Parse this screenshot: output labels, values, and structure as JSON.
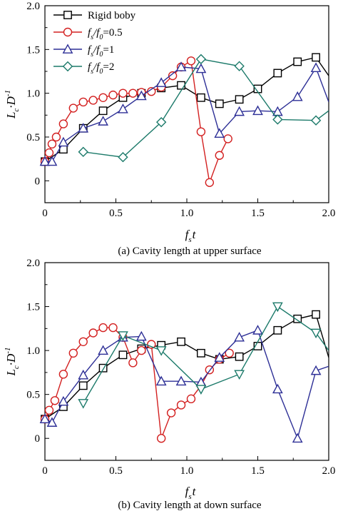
{
  "chart_data": [
    {
      "type": "line",
      "caption": "(a) Cavity length at upper surface",
      "xlabel": "f",
      "xlabel_sub": "s",
      "xlabel_tail": "t",
      "ylabel": "L",
      "ylabel_sub": "c",
      "ylabel_tail": "·D",
      "ylabel_sup": "-1",
      "xlim": [
        0,
        2.0
      ],
      "ylim": [
        -0.25,
        2.0
      ],
      "x_ticks": [
        "0",
        "0.5",
        "1.0",
        "1.5",
        "2.0"
      ],
      "y_ticks": [
        "0",
        "0.5",
        "1.0",
        "1.5",
        "2.0"
      ],
      "legend": {
        "placement": "top-left",
        "entries": [
          {
            "series": "rigid",
            "text": "Rigid boby"
          },
          {
            "series": "r05",
            "parts": [
              "f",
              "s",
              "/",
              "f",
              "0",
              "=0.5"
            ]
          },
          {
            "series": "r1",
            "parts": [
              "f",
              "s",
              "/",
              "f",
              "0",
              "=1"
            ]
          },
          {
            "series": "r2",
            "parts": [
              "f",
              "s",
              "/",
              "f",
              "0",
              "=2"
            ]
          }
        ]
      },
      "series": [
        {
          "id": "rigid",
          "color": "#000000",
          "marker": "square",
          "x": [
            0.0,
            0.13,
            0.27,
            0.41,
            0.55,
            0.68,
            0.82,
            0.96,
            1.1,
            1.23,
            1.37,
            1.5,
            1.64,
            1.78,
            1.91,
            2.0
          ],
          "y": [
            0.22,
            0.36,
            0.6,
            0.8,
            0.95,
            1.0,
            1.06,
            1.09,
            0.95,
            0.88,
            0.93,
            1.05,
            1.23,
            1.36,
            1.41,
            1.2
          ]
        },
        {
          "id": "r05",
          "color": "#d32020",
          "marker": "circle",
          "x": [
            0.0,
            0.03,
            0.05,
            0.08,
            0.13,
            0.2,
            0.27,
            0.34,
            0.41,
            0.48,
            0.55,
            0.62,
            0.68,
            0.75,
            0.82,
            0.9,
            0.96,
            1.03,
            1.1,
            1.16,
            1.23,
            1.29
          ],
          "y": [
            0.22,
            0.32,
            0.42,
            0.5,
            0.65,
            0.83,
            0.9,
            0.92,
            0.95,
            0.98,
            1.0,
            1.0,
            1.01,
            1.02,
            1.07,
            1.2,
            1.3,
            1.37,
            0.56,
            -0.02,
            0.29,
            0.48
          ]
        },
        {
          "id": "r1",
          "color": "#2d2f96",
          "marker": "triangle-up",
          "x": [
            0.0,
            0.05,
            0.13,
            0.27,
            0.41,
            0.55,
            0.68,
            0.82,
            0.96,
            1.1,
            1.23,
            1.37,
            1.5,
            1.64,
            1.78,
            1.91,
            2.0
          ],
          "y": [
            0.22,
            0.22,
            0.44,
            0.6,
            0.68,
            0.82,
            0.97,
            1.12,
            1.3,
            1.28,
            0.54,
            0.79,
            0.8,
            0.79,
            0.96,
            1.29,
            0.9
          ]
        },
        {
          "id": "r2",
          "color": "#1c7a6a",
          "marker": "diamond",
          "x": [
            0.27,
            0.55,
            0.82,
            1.1,
            1.37,
            1.64,
            1.91,
            2.0
          ],
          "y": [
            0.33,
            0.27,
            0.67,
            1.39,
            1.31,
            0.7,
            0.69,
            0.8
          ]
        }
      ]
    },
    {
      "type": "line",
      "caption": "(b) Cavity length at down surface",
      "xlabel": "f",
      "xlabel_sub": "s",
      "xlabel_tail": "t",
      "ylabel": "L",
      "ylabel_sub": "c",
      "ylabel_tail": "·D",
      "ylabel_sup": "-1",
      "xlim": [
        0,
        2.0
      ],
      "ylim": [
        -0.25,
        2.0
      ],
      "x_ticks": [
        "0",
        "0.5",
        "1.0",
        "1.5",
        "2.0"
      ],
      "y_ticks": [
        "0",
        "0.5",
        "1.0",
        "1.5",
        "2.0"
      ],
      "series": [
        {
          "id": "rigid",
          "color": "#000000",
          "marker": "square",
          "x": [
            0.0,
            0.13,
            0.27,
            0.41,
            0.55,
            0.68,
            0.82,
            0.96,
            1.1,
            1.23,
            1.37,
            1.5,
            1.64,
            1.78,
            1.91,
            2.0
          ],
          "y": [
            0.22,
            0.36,
            0.6,
            0.8,
            0.95,
            1.02,
            1.06,
            1.1,
            0.97,
            0.9,
            0.93,
            1.05,
            1.23,
            1.36,
            1.41,
            0.92
          ]
        },
        {
          "id": "r05",
          "color": "#d32020",
          "marker": "circle",
          "x": [
            0.0,
            0.03,
            0.07,
            0.13,
            0.2,
            0.27,
            0.34,
            0.41,
            0.48,
            0.55,
            0.62,
            0.68,
            0.75,
            0.82,
            0.89,
            0.96,
            1.03,
            1.1,
            1.16,
            1.23,
            1.3
          ],
          "y": [
            0.22,
            0.32,
            0.43,
            0.73,
            0.97,
            1.1,
            1.2,
            1.26,
            1.26,
            1.15,
            0.86,
            1.0,
            1.07,
            0.0,
            0.29,
            0.38,
            0.45,
            0.6,
            0.78,
            0.9,
            0.97
          ]
        },
        {
          "id": "r1",
          "color": "#2d2f96",
          "marker": "triangle-up",
          "x": [
            0.0,
            0.05,
            0.13,
            0.27,
            0.41,
            0.55,
            0.68,
            0.82,
            0.96,
            1.1,
            1.23,
            1.37,
            1.5,
            1.64,
            1.78,
            1.91,
            2.0
          ],
          "y": [
            0.22,
            0.18,
            0.42,
            0.72,
            1.0,
            1.15,
            1.16,
            0.65,
            0.65,
            0.64,
            0.92,
            1.15,
            1.23,
            0.56,
            0.0,
            0.77,
            0.82
          ]
        },
        {
          "id": "r2",
          "color": "#1c7a6a",
          "marker": "triangle-down",
          "x": [
            0.27,
            0.55,
            0.82,
            1.1,
            1.37,
            1.64,
            1.91,
            2.0
          ],
          "y": [
            0.4,
            1.17,
            1.0,
            0.56,
            0.73,
            1.5,
            1.2,
            1.0
          ]
        }
      ]
    }
  ]
}
